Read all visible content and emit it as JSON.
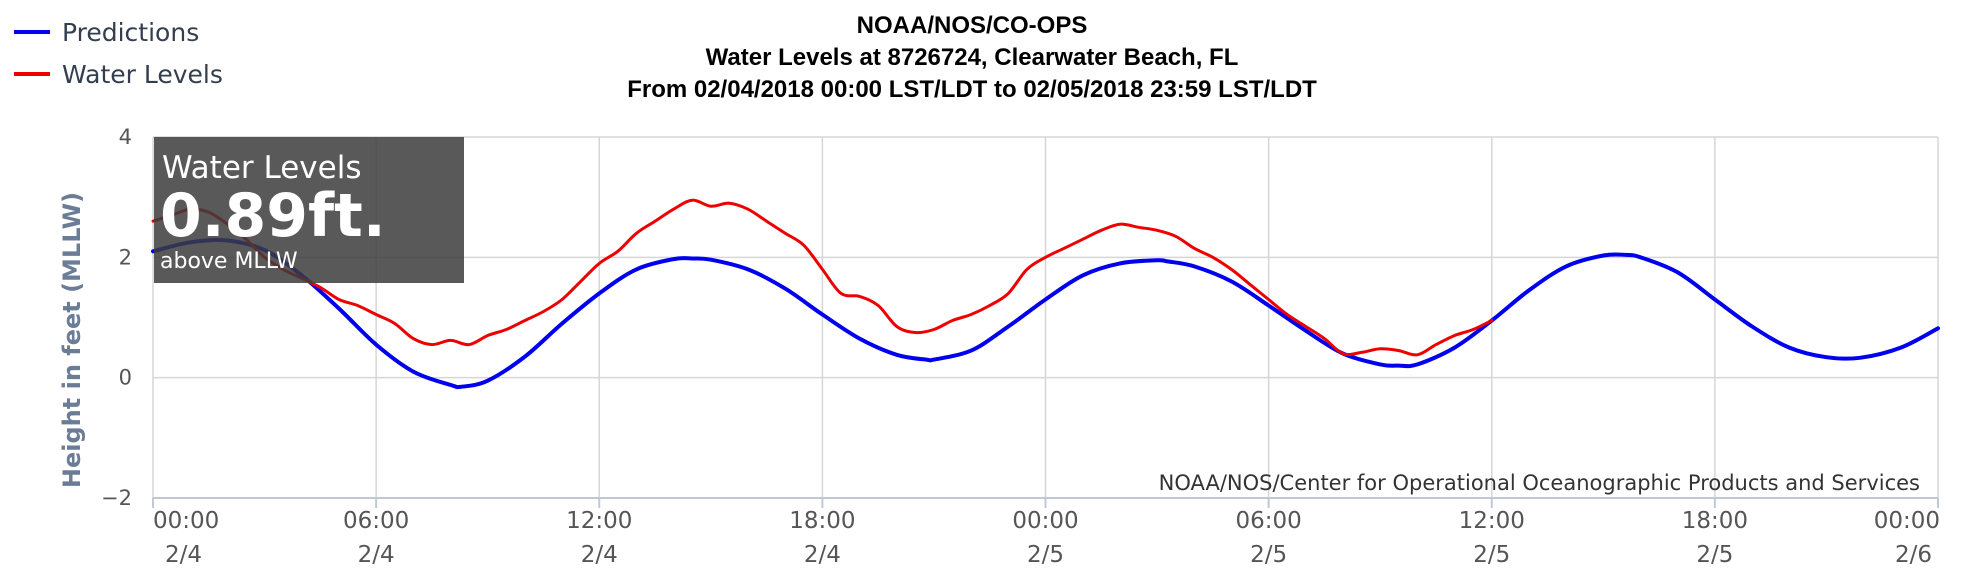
{
  "chart_data": {
    "type": "line",
    "title": "NOAA/NOS/CO-OPS",
    "subtitle": "Water Levels at 8726724, Clearwater Beach, FL",
    "subtitle2": "From 02/04/2018 00:00 LST/LDT to 02/05/2018 23:59 LST/LDT",
    "ylabel": "Height in feet (MLLW)",
    "xlabel": "",
    "ylim": [
      -2,
      4
    ],
    "y_ticks": [
      "4",
      "2",
      "0",
      "−2"
    ],
    "y_tick_values": [
      4,
      2,
      0,
      -2
    ],
    "xlim_hours": [
      0,
      48
    ],
    "x_ticks": [
      {
        "time": "00:00",
        "date": "2/4"
      },
      {
        "time": "06:00",
        "date": "2/4"
      },
      {
        "time": "12:00",
        "date": "2/4"
      },
      {
        "time": "18:00",
        "date": "2/4"
      },
      {
        "time": "00:00",
        "date": "2/5"
      },
      {
        "time": "06:00",
        "date": "2/5"
      },
      {
        "time": "12:00",
        "date": "2/5"
      },
      {
        "time": "18:00",
        "date": "2/5"
      },
      {
        "time": "00:00",
        "date": "2/6"
      }
    ],
    "x_tick_hours": [
      0,
      6,
      12,
      18,
      24,
      30,
      36,
      42,
      48
    ],
    "grid": true,
    "legend_position": "top-left",
    "credit": "NOAA/NOS/Center for Operational Oceanographic Products and Services",
    "series": [
      {
        "name": "Predictions",
        "color": "#0000ee",
        "x_hours": [
          0,
          1,
          2,
          3,
          4,
          5,
          6,
          7,
          8,
          8.3,
          9,
          10,
          11,
          12,
          13,
          14,
          14.5,
          15,
          16,
          17,
          18,
          19,
          20,
          20.8,
          21,
          22,
          23,
          24,
          25,
          26,
          27,
          27.3,
          28,
          29,
          30,
          31,
          32,
          33,
          33.5,
          34,
          35,
          36,
          37,
          38,
          39,
          39.6,
          40,
          41,
          42,
          43,
          44,
          45,
          45.9,
          47,
          48
        ],
        "values": [
          2.1,
          2.25,
          2.28,
          2.12,
          1.7,
          1.15,
          0.55,
          0.1,
          -0.12,
          -0.15,
          -0.05,
          0.35,
          0.9,
          1.4,
          1.8,
          1.97,
          1.98,
          1.96,
          1.8,
          1.48,
          1.05,
          0.65,
          0.38,
          0.3,
          0.3,
          0.45,
          0.85,
          1.3,
          1.7,
          1.9,
          1.95,
          1.93,
          1.85,
          1.6,
          1.2,
          0.78,
          0.4,
          0.22,
          0.2,
          0.22,
          0.5,
          0.95,
          1.45,
          1.85,
          2.03,
          2.04,
          2.0,
          1.75,
          1.3,
          0.85,
          0.5,
          0.34,
          0.33,
          0.5,
          0.82
        ]
      },
      {
        "name": "Water Levels",
        "color": "#ee0000",
        "x_hours": [
          0,
          0.5,
          1,
          1.5,
          2,
          2.5,
          3,
          3.5,
          4,
          4.5,
          5,
          5.5,
          6,
          6.5,
          7,
          7.5,
          8,
          8.5,
          9,
          9.5,
          10,
          10.5,
          11,
          11.5,
          12,
          12.5,
          13,
          13.5,
          14,
          14.5,
          15,
          15.5,
          16,
          16.5,
          17,
          17.5,
          18,
          18.5,
          19,
          19.5,
          20,
          20.5,
          21,
          21.5,
          22,
          22.5,
          23,
          23.5,
          24,
          24.5,
          25,
          25.5,
          26,
          26.5,
          27,
          27.5,
          28,
          28.5,
          29,
          29.5,
          30,
          30.5,
          31,
          31.5,
          32,
          32.5,
          33,
          33.5,
          34,
          34.5,
          35,
          35.5,
          36
        ],
        "values": [
          2.6,
          2.7,
          2.8,
          2.75,
          2.55,
          2.3,
          2.0,
          1.8,
          1.65,
          1.5,
          1.3,
          1.2,
          1.05,
          0.9,
          0.65,
          0.55,
          0.62,
          0.55,
          0.7,
          0.8,
          0.95,
          1.1,
          1.3,
          1.6,
          1.9,
          2.1,
          2.4,
          2.6,
          2.8,
          2.95,
          2.85,
          2.9,
          2.8,
          2.6,
          2.4,
          2.2,
          1.8,
          1.4,
          1.35,
          1.2,
          0.85,
          0.75,
          0.8,
          0.95,
          1.05,
          1.2,
          1.4,
          1.8,
          2.0,
          2.15,
          2.3,
          2.45,
          2.55,
          2.5,
          2.45,
          2.35,
          2.15,
          2.0,
          1.8,
          1.55,
          1.3,
          1.05,
          0.85,
          0.65,
          0.4,
          0.42,
          0.48,
          0.45,
          0.38,
          0.55,
          0.7,
          0.8,
          0.95
        ]
      }
    ]
  },
  "overlay": {
    "title": "Water Levels",
    "value": "0.89ft.",
    "sub": "above MLLW"
  },
  "legend": {
    "items": [
      {
        "label": "Predictions",
        "color": "#0000ee"
      },
      {
        "label": "Water Levels",
        "color": "#ee0000"
      }
    ]
  }
}
